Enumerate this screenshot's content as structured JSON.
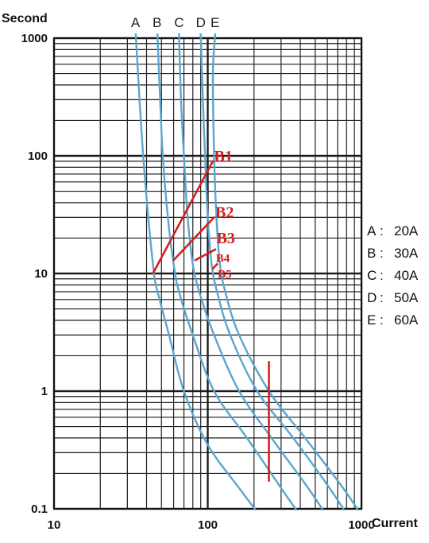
{
  "chart_data": {
    "type": "line",
    "xlabel": "Current",
    "ylabel": "Second",
    "x_scale": "log",
    "y_scale": "log",
    "xlim": [
      10,
      1000
    ],
    "ylim": [
      0.1,
      1000
    ],
    "x_ticks": [
      "10",
      "100",
      "1000"
    ],
    "y_ticks": [
      "1000",
      "100",
      "10",
      "1",
      "0.1"
    ],
    "grid": true,
    "series": [
      {
        "name": "A",
        "color": "#5aa6cf",
        "points": [
          [
            34,
            1100
          ],
          [
            36,
            300
          ],
          [
            38,
            100
          ],
          [
            41,
            30
          ],
          [
            44,
            12
          ],
          [
            46,
            8
          ],
          [
            56,
            3
          ],
          [
            70,
            1
          ],
          [
            100,
            0.35
          ],
          [
            160,
            0.15
          ],
          [
            230,
            0.08
          ]
        ]
      },
      {
        "name": "B",
        "color": "#5aa6cf",
        "points": [
          [
            47,
            1100
          ],
          [
            49,
            300
          ],
          [
            51,
            100
          ],
          [
            55,
            30
          ],
          [
            60,
            12
          ],
          [
            65,
            7
          ],
          [
            80,
            3
          ],
          [
            110,
            1
          ],
          [
            180,
            0.4
          ],
          [
            300,
            0.15
          ],
          [
            420,
            0.08
          ]
        ]
      },
      {
        "name": "C",
        "color": "#5aa6cf",
        "points": [
          [
            65,
            1100
          ],
          [
            67,
            300
          ],
          [
            70,
            100
          ],
          [
            74,
            30
          ],
          [
            80,
            12
          ],
          [
            88,
            7
          ],
          [
            110,
            3
          ],
          [
            160,
            1
          ],
          [
            260,
            0.4
          ],
          [
            450,
            0.15
          ],
          [
            620,
            0.08
          ]
        ]
      },
      {
        "name": "D",
        "color": "#5aa6cf",
        "points": [
          [
            90,
            1100
          ],
          [
            93,
            300
          ],
          [
            96,
            100
          ],
          [
            100,
            30
          ],
          [
            106,
            12
          ],
          [
            115,
            7
          ],
          [
            140,
            3
          ],
          [
            210,
            1
          ],
          [
            360,
            0.4
          ],
          [
            620,
            0.15
          ],
          [
            850,
            0.08
          ]
        ]
      },
      {
        "name": "E",
        "color": "#5aa6cf",
        "points": [
          [
            112,
            1100
          ],
          [
            108,
            500
          ],
          [
            110,
            100
          ],
          [
            114,
            30
          ],
          [
            120,
            12
          ],
          [
            130,
            7
          ],
          [
            160,
            3
          ],
          [
            250,
            1
          ],
          [
            430,
            0.4
          ],
          [
            760,
            0.15
          ],
          [
            1050,
            0.08
          ]
        ]
      }
    ],
    "legend": [
      {
        "label": "A",
        "sep": ":",
        "value": "20A"
      },
      {
        "label": "B",
        "sep": ":",
        "value": "30A"
      },
      {
        "label": "C",
        "sep": ":",
        "value": "40A"
      },
      {
        "label": "D",
        "sep": ":",
        "value": "50A"
      },
      {
        "label": "E",
        "sep": ":",
        "value": "60A"
      }
    ],
    "legend_placement": "right",
    "annotations": {
      "color": "#d41f1f",
      "segments": [
        {
          "label": "B1",
          "from": [
            44,
            10
          ],
          "to": [
            108,
            90
          ]
        },
        {
          "label": "B2",
          "from": [
            60,
            13
          ],
          "to": [
            110,
            30
          ]
        },
        {
          "label": "B3",
          "from": [
            83,
            13
          ],
          "to": [
            112,
            16
          ]
        },
        {
          "label": "B4",
          "from": [
            108,
            11
          ],
          "to": [
            115,
            12
          ]
        }
      ],
      "labels": [
        {
          "text": "B1",
          "x": 110,
          "y": 90,
          "size": "large"
        },
        {
          "text": "B2",
          "x": 112,
          "y": 30,
          "size": "large"
        },
        {
          "text": "B3",
          "x": 114,
          "y": 18,
          "size": "large"
        },
        {
          "text": "B4",
          "x": 113,
          "y": 12.5,
          "size": "small"
        },
        {
          "text": "B5",
          "x": 116,
          "y": 9.2,
          "size": "small"
        }
      ],
      "vertical_line": {
        "x": 250,
        "y_from": 0.17,
        "y_to": 1.8
      }
    }
  }
}
